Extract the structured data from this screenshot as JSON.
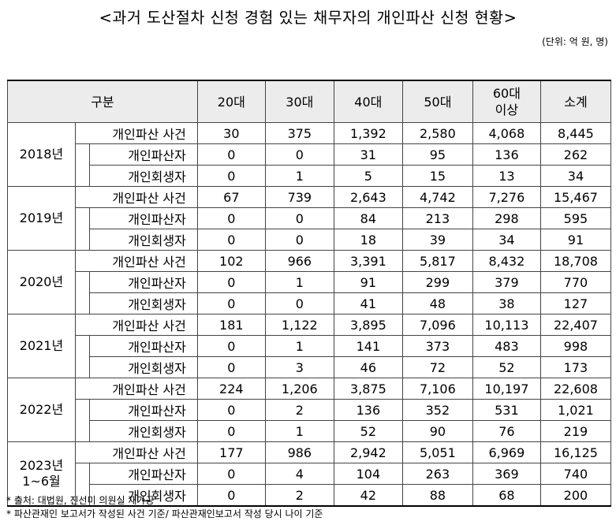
{
  "title": "<과거 도산절차 신청 경험 있는 채무자의 개인파산 신청 현황>",
  "unit": "(단위: 억 원, 명)",
  "columns": [
    "구분",
    "20대",
    "30대",
    "40대",
    "50대",
    "60대 이상",
    "소계"
  ],
  "groups": [
    {
      "year": "2018년",
      "rows": [
        {
          "label": "개인파산 사건",
          "values": [
            "30",
            "375",
            "1,392",
            "2,580",
            "4,068",
            "8,445"
          ]
        },
        {
          "label": "개인파산자",
          "values": [
            "0",
            "0",
            "31",
            "95",
            "136",
            "262"
          ]
        },
        {
          "label": "개인회생자",
          "values": [
            "0",
            "1",
            "5",
            "15",
            "13",
            "34"
          ]
        }
      ]
    },
    {
      "year": "2019년",
      "rows": [
        {
          "label": "개인파산 사건",
          "values": [
            "67",
            "739",
            "2,643",
            "4,742",
            "7,276",
            "15,467"
          ]
        },
        {
          "label": "개인파산자",
          "values": [
            "0",
            "0",
            "84",
            "213",
            "298",
            "595"
          ]
        },
        {
          "label": "개인회생자",
          "values": [
            "0",
            "0",
            "18",
            "39",
            "34",
            "91"
          ]
        }
      ]
    },
    {
      "year": "2020년",
      "rows": [
        {
          "label": "개인파산 사건",
          "values": [
            "102",
            "966",
            "3,391",
            "5,817",
            "8,432",
            "18,708"
          ]
        },
        {
          "label": "개인파산자",
          "values": [
            "0",
            "1",
            "91",
            "299",
            "379",
            "770"
          ]
        },
        {
          "label": "개인회생자",
          "values": [
            "0",
            "0",
            "41",
            "48",
            "38",
            "127"
          ]
        }
      ]
    },
    {
      "year": "2021년",
      "rows": [
        {
          "label": "개인파산 사건",
          "values": [
            "181",
            "1,122",
            "3,895",
            "7,096",
            "10,113",
            "22,407"
          ]
        },
        {
          "label": "개인파산자",
          "values": [
            "0",
            "1",
            "141",
            "373",
            "483",
            "998"
          ]
        },
        {
          "label": "개인회생자",
          "values": [
            "0",
            "3",
            "46",
            "72",
            "52",
            "173"
          ]
        }
      ]
    },
    {
      "year": "2022년",
      "rows": [
        {
          "label": "개인파산 사건",
          "values": [
            "224",
            "1,206",
            "3,875",
            "7,106",
            "10,197",
            "22,608"
          ]
        },
        {
          "label": "개인파산자",
          "values": [
            "0",
            "2",
            "136",
            "352",
            "531",
            "1,021"
          ]
        },
        {
          "label": "개인회생자",
          "values": [
            "0",
            "1",
            "52",
            "90",
            "76",
            "219"
          ]
        }
      ]
    },
    {
      "year": "2023년 1~6월",
      "rows": [
        {
          "label": "개인파산 사건",
          "values": [
            "177",
            "986",
            "2,942",
            "5,051",
            "6,969",
            "16,125"
          ]
        },
        {
          "label": "개인파산자",
          "values": [
            "0",
            "4",
            "104",
            "263",
            "369",
            "740"
          ]
        },
        {
          "label": "개인회생자",
          "values": [
            "0",
            "2",
            "42",
            "88",
            "68",
            "200"
          ]
        }
      ]
    }
  ],
  "notes": [
    "* 출처: 대법원, 진선미 의원실 재가공",
    "* 파산관재인 보고서가 작성된 사건 기준/ 파산관재인보고서 작성 당시 나이 기준"
  ]
}
